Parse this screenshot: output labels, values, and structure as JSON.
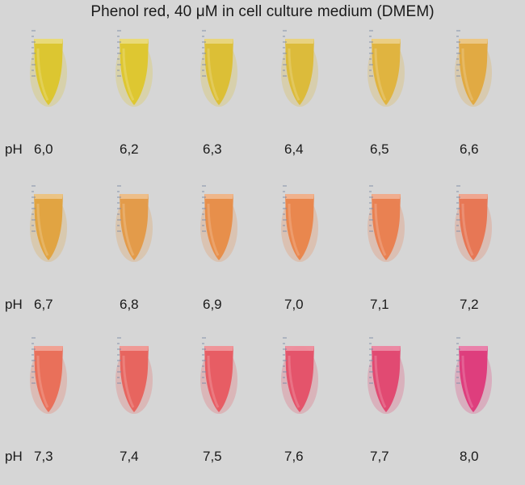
{
  "title": "Phenol red, 40 μM in cell culture medium (DMEM)",
  "ph_prefix": "pH",
  "rows": [
    {
      "samples": [
        {
          "ph": "6,0",
          "color": "#dcc52a"
        },
        {
          "ph": "6,2",
          "color": "#dec62a"
        },
        {
          "ph": "6,3",
          "color": "#dcbe2f"
        },
        {
          "ph": "6,4",
          "color": "#dcb935"
        },
        {
          "ph": "6,5",
          "color": "#e0b23a"
        },
        {
          "ph": "6,6",
          "color": "#e1a83d"
        }
      ]
    },
    {
      "samples": [
        {
          "ph": "6,7",
          "color": "#e1a23c"
        },
        {
          "ph": "6,8",
          "color": "#e49944"
        },
        {
          "ph": "6,9",
          "color": "#e88c46"
        },
        {
          "ph": "7,0",
          "color": "#ea8449"
        },
        {
          "ph": "7,1",
          "color": "#ea7d4d"
        },
        {
          "ph": "7,2",
          "color": "#e87350"
        }
      ]
    },
    {
      "samples": [
        {
          "ph": "7,3",
          "color": "#ea6c55"
        },
        {
          "ph": "7,4",
          "color": "#e8605a"
        },
        {
          "ph": "7,5",
          "color": "#e8585f"
        },
        {
          "ph": "7,6",
          "color": "#e54f66"
        },
        {
          "ph": "7,7",
          "color": "#e2456e"
        },
        {
          "ph": "8,0",
          "color": "#de3879"
        }
      ]
    }
  ]
}
